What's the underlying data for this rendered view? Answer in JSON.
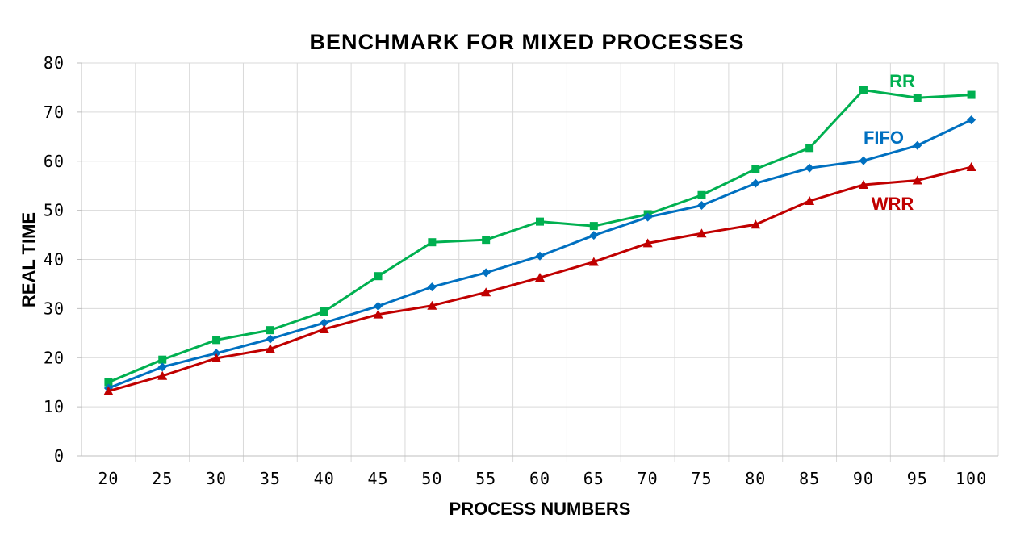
{
  "chart_data": {
    "type": "line",
    "title": "BENCHMARK FOR MIXED PROCESSES",
    "xlabel": "PROCESS NUMBERS",
    "ylabel": "REAL TIME",
    "categories": [
      "20",
      "25",
      "30",
      "35",
      "40",
      "45",
      "50",
      "55",
      "60",
      "65",
      "70",
      "75",
      "80",
      "85",
      "90",
      "95",
      "100"
    ],
    "ylim": [
      0,
      80
    ],
    "yticks": [
      0,
      10,
      20,
      30,
      40,
      50,
      60,
      70,
      80
    ],
    "grid": true,
    "series": [
      {
        "name": "RR",
        "color": "#00b050",
        "marker": "square",
        "values": [
          15.0,
          19.6,
          23.6,
          25.6,
          29.4,
          36.6,
          43.5,
          44.0,
          47.7,
          46.8,
          49.2,
          53.1,
          58.4,
          62.7,
          74.5,
          72.9,
          73.5
        ]
      },
      {
        "name": "FIFO",
        "color": "#0070c0",
        "marker": "diamond",
        "values": [
          13.8,
          18.1,
          20.9,
          23.8,
          27.1,
          30.5,
          34.4,
          37.3,
          40.7,
          44.9,
          48.6,
          51.0,
          55.5,
          58.6,
          60.1,
          63.2,
          68.4
        ]
      },
      {
        "name": "WRR",
        "color": "#c00000",
        "marker": "triangle",
        "values": [
          13.2,
          16.3,
          19.9,
          21.8,
          25.8,
          28.8,
          30.6,
          33.3,
          36.3,
          39.5,
          43.3,
          45.3,
          47.1,
          51.9,
          55.2,
          56.1,
          58.8
        ]
      }
    ]
  }
}
